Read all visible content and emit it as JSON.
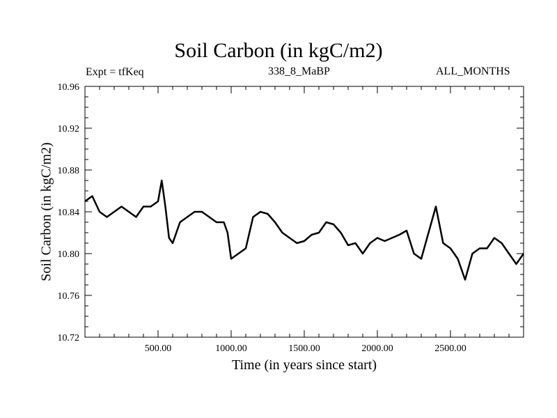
{
  "chart_data": {
    "type": "line",
    "title": "Soil Carbon (in kgC/m2)",
    "annotations": {
      "experiment": "Expt = tfKeq",
      "period": "338_8_MaBP",
      "months": "ALL_MONTHS"
    },
    "xlabel": "Time (in years since start)",
    "ylabel": "Soil Carbon (in kgC/m2)",
    "xlim": [
      0,
      3000
    ],
    "ylim": [
      10.72,
      10.96
    ],
    "x_ticks": [
      500,
      1000,
      1500,
      2000,
      2500
    ],
    "x_tick_labels": [
      "500.00",
      "1000.00",
      "1500.00",
      "2000.00",
      "2500.00"
    ],
    "y_ticks": [
      10.72,
      10.76,
      10.8,
      10.84,
      10.88,
      10.92,
      10.96
    ],
    "y_tick_labels": [
      "10.72",
      "10.76",
      "10.80",
      "10.84",
      "10.88",
      "10.92",
      "10.96"
    ],
    "grid": false,
    "series": [
      {
        "color": "#000000",
        "x": [
          0,
          50,
          100,
          150,
          200,
          250,
          300,
          350,
          400,
          450,
          500,
          525,
          550,
          575,
          600,
          650,
          700,
          750,
          800,
          850,
          900,
          950,
          975,
          1000,
          1050,
          1100,
          1150,
          1200,
          1250,
          1300,
          1350,
          1400,
          1450,
          1500,
          1550,
          1600,
          1650,
          1700,
          1750,
          1800,
          1850,
          1900,
          1950,
          2000,
          2050,
          2100,
          2150,
          2200,
          2250,
          2300,
          2350,
          2400,
          2450,
          2500,
          2550,
          2600,
          2650,
          2700,
          2750,
          2800,
          2850,
          2900,
          2950,
          3000
        ],
        "values": [
          10.85,
          10.855,
          10.84,
          10.835,
          10.84,
          10.845,
          10.84,
          10.835,
          10.845,
          10.845,
          10.85,
          10.87,
          10.845,
          10.815,
          10.81,
          10.83,
          10.835,
          10.84,
          10.84,
          10.835,
          10.83,
          10.83,
          10.82,
          10.795,
          10.8,
          10.805,
          10.835,
          10.84,
          10.838,
          10.83,
          10.82,
          10.815,
          10.81,
          10.812,
          10.818,
          10.82,
          10.83,
          10.828,
          10.82,
          10.808,
          10.81,
          10.8,
          10.81,
          10.815,
          10.812,
          10.815,
          10.818,
          10.822,
          10.8,
          10.795,
          10.82,
          10.845,
          10.81,
          10.805,
          10.795,
          10.775,
          10.8,
          10.805,
          10.805,
          10.815,
          10.81,
          10.8,
          10.79,
          10.8
        ]
      }
    ]
  }
}
